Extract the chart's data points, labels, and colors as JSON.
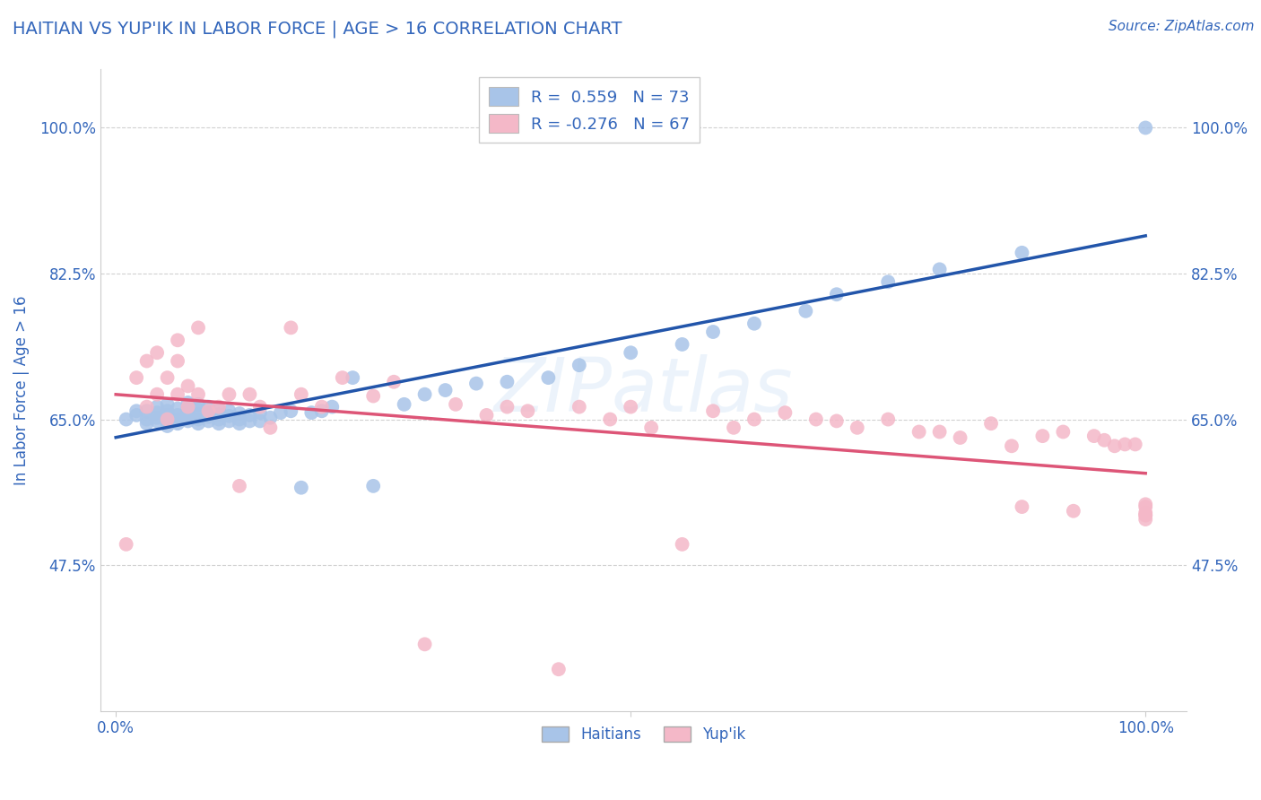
{
  "title": "HAITIAN VS YUP'IK IN LABOR FORCE | AGE > 16 CORRELATION CHART",
  "source_text": "Source: ZipAtlas.com",
  "ylabel": "In Labor Force | Age > 16",
  "ytick_positions": [
    0.475,
    0.65,
    0.825,
    1.0
  ],
  "legend_entries": [
    {
      "label": "R =  0.559   N = 73",
      "color": "#a8c4e0"
    },
    {
      "label": "R = -0.276   N = 67",
      "color": "#f4b8c8"
    }
  ],
  "watermark": "ZIPatlas",
  "background_color": "#ffffff",
  "title_color": "#3366bb",
  "axis_label_color": "#3366bb",
  "tick_label_color": "#3366bb",
  "grid_color": "#cccccc",
  "haitian_scatter_color": "#a8c4e8",
  "yupik_scatter_color": "#f4b8c8",
  "haitian_line_color": "#2255aa",
  "yupik_line_color": "#dd5577",
  "bottom_labels": [
    "Haitians",
    "Yup'ik"
  ],
  "bottom_label_colors": [
    "#a8c4e8",
    "#f4b8c8"
  ],
  "haitian_x": [
    0.01,
    0.02,
    0.02,
    0.03,
    0.03,
    0.03,
    0.04,
    0.04,
    0.04,
    0.04,
    0.05,
    0.05,
    0.05,
    0.05,
    0.05,
    0.06,
    0.06,
    0.06,
    0.06,
    0.07,
    0.07,
    0.07,
    0.07,
    0.07,
    0.08,
    0.08,
    0.08,
    0.08,
    0.08,
    0.09,
    0.09,
    0.09,
    0.09,
    0.1,
    0.1,
    0.1,
    0.1,
    0.11,
    0.11,
    0.11,
    0.12,
    0.12,
    0.12,
    0.13,
    0.13,
    0.14,
    0.14,
    0.15,
    0.16,
    0.17,
    0.18,
    0.19,
    0.2,
    0.21,
    0.23,
    0.25,
    0.28,
    0.3,
    0.32,
    0.35,
    0.38,
    0.42,
    0.45,
    0.5,
    0.55,
    0.58,
    0.62,
    0.67,
    0.7,
    0.75,
    0.8,
    0.88,
    1.0
  ],
  "haitian_y": [
    0.65,
    0.655,
    0.66,
    0.645,
    0.65,
    0.66,
    0.648,
    0.652,
    0.658,
    0.665,
    0.642,
    0.648,
    0.655,
    0.66,
    0.668,
    0.645,
    0.65,
    0.655,
    0.663,
    0.648,
    0.652,
    0.658,
    0.663,
    0.67,
    0.645,
    0.65,
    0.656,
    0.662,
    0.668,
    0.648,
    0.653,
    0.658,
    0.665,
    0.645,
    0.65,
    0.656,
    0.662,
    0.648,
    0.654,
    0.66,
    0.645,
    0.65,
    0.657,
    0.648,
    0.655,
    0.648,
    0.658,
    0.652,
    0.658,
    0.66,
    0.568,
    0.658,
    0.66,
    0.665,
    0.7,
    0.57,
    0.668,
    0.68,
    0.685,
    0.693,
    0.695,
    0.7,
    0.715,
    0.73,
    0.74,
    0.755,
    0.765,
    0.78,
    0.8,
    0.815,
    0.83,
    0.85,
    1.0
  ],
  "yupik_x": [
    0.01,
    0.02,
    0.03,
    0.03,
    0.04,
    0.04,
    0.05,
    0.05,
    0.06,
    0.06,
    0.06,
    0.07,
    0.07,
    0.08,
    0.08,
    0.09,
    0.1,
    0.11,
    0.12,
    0.13,
    0.14,
    0.15,
    0.17,
    0.18,
    0.2,
    0.22,
    0.25,
    0.27,
    0.3,
    0.33,
    0.36,
    0.38,
    0.4,
    0.43,
    0.45,
    0.48,
    0.5,
    0.52,
    0.55,
    0.58,
    0.6,
    0.62,
    0.65,
    0.68,
    0.7,
    0.72,
    0.75,
    0.78,
    0.8,
    0.82,
    0.85,
    0.87,
    0.88,
    0.9,
    0.92,
    0.93,
    0.95,
    0.96,
    0.97,
    0.98,
    0.99,
    1.0,
    1.0,
    1.0,
    1.0,
    1.0,
    1.0
  ],
  "yupik_y": [
    0.5,
    0.7,
    0.72,
    0.665,
    0.68,
    0.73,
    0.65,
    0.7,
    0.72,
    0.68,
    0.745,
    0.69,
    0.665,
    0.68,
    0.76,
    0.66,
    0.665,
    0.68,
    0.57,
    0.68,
    0.665,
    0.64,
    0.76,
    0.68,
    0.665,
    0.7,
    0.678,
    0.695,
    0.38,
    0.668,
    0.655,
    0.665,
    0.66,
    0.35,
    0.665,
    0.65,
    0.665,
    0.64,
    0.5,
    0.66,
    0.64,
    0.65,
    0.658,
    0.65,
    0.648,
    0.64,
    0.65,
    0.635,
    0.635,
    0.628,
    0.645,
    0.618,
    0.545,
    0.63,
    0.635,
    0.54,
    0.63,
    0.625,
    0.618,
    0.62,
    0.62,
    0.53,
    0.535,
    0.545,
    0.535,
    0.538,
    0.548
  ]
}
